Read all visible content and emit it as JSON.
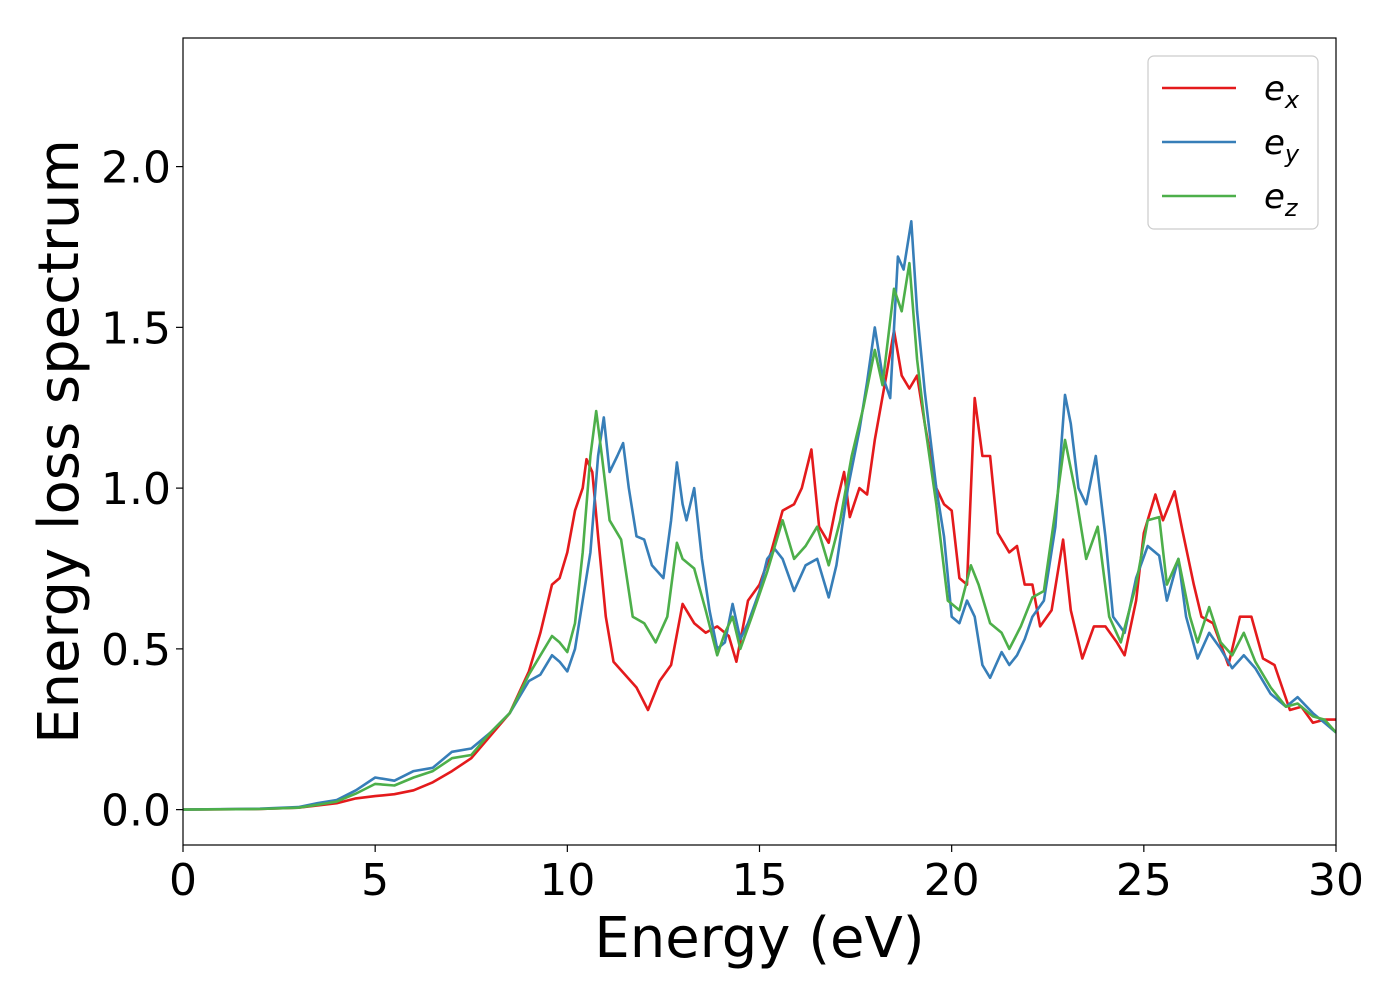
{
  "chart_data": {
    "type": "line",
    "xlabel": "Energy (eV)",
    "ylabel": "Energy loss spectrum",
    "xlim": [
      0,
      30
    ],
    "ylim": [
      -0.11,
      2.4
    ],
    "xticks": [
      0,
      5,
      10,
      15,
      20,
      25,
      30
    ],
    "xtick_labels": [
      "0",
      "5",
      "10",
      "15",
      "20",
      "25",
      "30"
    ],
    "yticks": [
      0.0,
      0.5,
      1.0,
      1.5,
      2.0
    ],
    "ytick_labels": [
      "0.0",
      "0.5",
      "1.0",
      "1.5",
      "2.0"
    ],
    "grid": false,
    "legend_position": "top-right",
    "series": [
      {
        "name": "e",
        "subscript": "x",
        "color": "#e41a1c",
        "points": [
          [
            0,
            0
          ],
          [
            2,
            0.002
          ],
          [
            3,
            0.006
          ],
          [
            4,
            0.02
          ],
          [
            4.5,
            0.035
          ],
          [
            5,
            0.042
          ],
          [
            5.5,
            0.048
          ],
          [
            6,
            0.06
          ],
          [
            6.5,
            0.085
          ],
          [
            7,
            0.12
          ],
          [
            7.5,
            0.16
          ],
          [
            8,
            0.23
          ],
          [
            8.5,
            0.3
          ],
          [
            9,
            0.43
          ],
          [
            9.3,
            0.55
          ],
          [
            9.6,
            0.7
          ],
          [
            9.8,
            0.72
          ],
          [
            10,
            0.8
          ],
          [
            10.2,
            0.93
          ],
          [
            10.4,
            1.0
          ],
          [
            10.5,
            1.09
          ],
          [
            10.65,
            1.05
          ],
          [
            10.8,
            0.85
          ],
          [
            11,
            0.6
          ],
          [
            11.2,
            0.46
          ],
          [
            11.5,
            0.42
          ],
          [
            11.8,
            0.38
          ],
          [
            12.1,
            0.31
          ],
          [
            12.4,
            0.4
          ],
          [
            12.7,
            0.45
          ],
          [
            13,
            0.64
          ],
          [
            13.3,
            0.58
          ],
          [
            13.6,
            0.55
          ],
          [
            13.9,
            0.57
          ],
          [
            14.2,
            0.54
          ],
          [
            14.4,
            0.46
          ],
          [
            14.7,
            0.65
          ],
          [
            15,
            0.7
          ],
          [
            15.3,
            0.8
          ],
          [
            15.6,
            0.93
          ],
          [
            15.9,
            0.95
          ],
          [
            16.1,
            1.0
          ],
          [
            16.35,
            1.12
          ],
          [
            16.55,
            0.88
          ],
          [
            16.8,
            0.83
          ],
          [
            17,
            0.95
          ],
          [
            17.2,
            1.05
          ],
          [
            17.35,
            0.91
          ],
          [
            17.6,
            1.0
          ],
          [
            17.8,
            0.98
          ],
          [
            18,
            1.15
          ],
          [
            18.3,
            1.35
          ],
          [
            18.5,
            1.49
          ],
          [
            18.7,
            1.35
          ],
          [
            18.9,
            1.31
          ],
          [
            19.1,
            1.35
          ],
          [
            19.3,
            1.2
          ],
          [
            19.6,
            1.0
          ],
          [
            19.8,
            0.95
          ],
          [
            20,
            0.93
          ],
          [
            20.2,
            0.72
          ],
          [
            20.4,
            0.7
          ],
          [
            20.6,
            1.28
          ],
          [
            20.8,
            1.1
          ],
          [
            21,
            1.1
          ],
          [
            21.2,
            0.86
          ],
          [
            21.5,
            0.8
          ],
          [
            21.7,
            0.82
          ],
          [
            21.9,
            0.7
          ],
          [
            22.1,
            0.7
          ],
          [
            22.3,
            0.57
          ],
          [
            22.6,
            0.62
          ],
          [
            22.9,
            0.84
          ],
          [
            23.1,
            0.62
          ],
          [
            23.4,
            0.47
          ],
          [
            23.7,
            0.57
          ],
          [
            24,
            0.57
          ],
          [
            24.3,
            0.52
          ],
          [
            24.5,
            0.48
          ],
          [
            24.8,
            0.65
          ],
          [
            25,
            0.86
          ],
          [
            25.3,
            0.98
          ],
          [
            25.5,
            0.9
          ],
          [
            25.8,
            0.99
          ],
          [
            26,
            0.87
          ],
          [
            26.3,
            0.7
          ],
          [
            26.5,
            0.6
          ],
          [
            26.8,
            0.58
          ],
          [
            27.2,
            0.45
          ],
          [
            27.5,
            0.6
          ],
          [
            27.8,
            0.6
          ],
          [
            28.1,
            0.47
          ],
          [
            28.4,
            0.45
          ],
          [
            28.8,
            0.31
          ],
          [
            29.1,
            0.32
          ],
          [
            29.4,
            0.27
          ],
          [
            29.7,
            0.28
          ],
          [
            30,
            0.28
          ]
        ]
      },
      {
        "name": "e",
        "subscript": "y",
        "color": "#377eb8",
        "points": [
          [
            0,
            0
          ],
          [
            2,
            0.003
          ],
          [
            3,
            0.008
          ],
          [
            3.5,
            0.02
          ],
          [
            4,
            0.03
          ],
          [
            4.5,
            0.06
          ],
          [
            5,
            0.1
          ],
          [
            5.5,
            0.09
          ],
          [
            6,
            0.12
          ],
          [
            6.5,
            0.13
          ],
          [
            7,
            0.18
          ],
          [
            7.5,
            0.19
          ],
          [
            8,
            0.24
          ],
          [
            8.5,
            0.3
          ],
          [
            9,
            0.4
          ],
          [
            9.3,
            0.42
          ],
          [
            9.6,
            0.48
          ],
          [
            9.8,
            0.46
          ],
          [
            10,
            0.43
          ],
          [
            10.2,
            0.5
          ],
          [
            10.4,
            0.65
          ],
          [
            10.6,
            0.8
          ],
          [
            10.8,
            1.1
          ],
          [
            10.95,
            1.22
          ],
          [
            11.1,
            1.05
          ],
          [
            11.3,
            1.1
          ],
          [
            11.45,
            1.14
          ],
          [
            11.6,
            1.0
          ],
          [
            11.8,
            0.85
          ],
          [
            12,
            0.84
          ],
          [
            12.2,
            0.76
          ],
          [
            12.5,
            0.72
          ],
          [
            12.7,
            0.9
          ],
          [
            12.85,
            1.08
          ],
          [
            13,
            0.95
          ],
          [
            13.1,
            0.9
          ],
          [
            13.3,
            1.0
          ],
          [
            13.5,
            0.78
          ],
          [
            13.7,
            0.62
          ],
          [
            13.9,
            0.5
          ],
          [
            14.1,
            0.52
          ],
          [
            14.3,
            0.64
          ],
          [
            14.5,
            0.53
          ],
          [
            14.7,
            0.58
          ],
          [
            15,
            0.68
          ],
          [
            15.2,
            0.78
          ],
          [
            15.4,
            0.81
          ],
          [
            15.6,
            0.78
          ],
          [
            15.9,
            0.68
          ],
          [
            16.2,
            0.76
          ],
          [
            16.5,
            0.78
          ],
          [
            16.8,
            0.66
          ],
          [
            17,
            0.76
          ],
          [
            17.3,
            1.0
          ],
          [
            17.6,
            1.18
          ],
          [
            17.8,
            1.33
          ],
          [
            18,
            1.5
          ],
          [
            18.2,
            1.35
          ],
          [
            18.4,
            1.28
          ],
          [
            18.6,
            1.72
          ],
          [
            18.75,
            1.68
          ],
          [
            18.95,
            1.83
          ],
          [
            19.1,
            1.55
          ],
          [
            19.3,
            1.3
          ],
          [
            19.6,
            1.0
          ],
          [
            19.8,
            0.85
          ],
          [
            20,
            0.6
          ],
          [
            20.2,
            0.58
          ],
          [
            20.4,
            0.65
          ],
          [
            20.6,
            0.6
          ],
          [
            20.8,
            0.45
          ],
          [
            21,
            0.41
          ],
          [
            21.3,
            0.49
          ],
          [
            21.5,
            0.45
          ],
          [
            21.7,
            0.48
          ],
          [
            21.9,
            0.53
          ],
          [
            22.1,
            0.6
          ],
          [
            22.4,
            0.65
          ],
          [
            22.7,
            0.88
          ],
          [
            22.95,
            1.29
          ],
          [
            23.1,
            1.2
          ],
          [
            23.3,
            1.0
          ],
          [
            23.5,
            0.95
          ],
          [
            23.75,
            1.1
          ],
          [
            24,
            0.85
          ],
          [
            24.2,
            0.6
          ],
          [
            24.5,
            0.55
          ],
          [
            24.8,
            0.72
          ],
          [
            25.1,
            0.82
          ],
          [
            25.4,
            0.79
          ],
          [
            25.6,
            0.65
          ],
          [
            25.9,
            0.78
          ],
          [
            26.1,
            0.6
          ],
          [
            26.4,
            0.47
          ],
          [
            26.7,
            0.55
          ],
          [
            27,
            0.5
          ],
          [
            27.3,
            0.44
          ],
          [
            27.6,
            0.48
          ],
          [
            27.9,
            0.44
          ],
          [
            28.3,
            0.36
          ],
          [
            28.7,
            0.32
          ],
          [
            29,
            0.35
          ],
          [
            29.4,
            0.3
          ],
          [
            29.7,
            0.27
          ],
          [
            30,
            0.24
          ]
        ]
      },
      {
        "name": "e",
        "subscript": "z",
        "color": "#4daf4a",
        "points": [
          [
            0,
            0
          ],
          [
            2,
            0.002
          ],
          [
            3,
            0.006
          ],
          [
            3.5,
            0.015
          ],
          [
            4,
            0.025
          ],
          [
            4.5,
            0.05
          ],
          [
            5,
            0.08
          ],
          [
            5.5,
            0.075
          ],
          [
            6,
            0.1
          ],
          [
            6.5,
            0.12
          ],
          [
            7,
            0.16
          ],
          [
            7.5,
            0.17
          ],
          [
            8,
            0.24
          ],
          [
            8.5,
            0.3
          ],
          [
            9,
            0.42
          ],
          [
            9.3,
            0.48
          ],
          [
            9.6,
            0.54
          ],
          [
            9.8,
            0.52
          ],
          [
            10,
            0.49
          ],
          [
            10.2,
            0.58
          ],
          [
            10.4,
            0.8
          ],
          [
            10.6,
            1.1
          ],
          [
            10.75,
            1.24
          ],
          [
            10.9,
            1.1
          ],
          [
            11.1,
            0.9
          ],
          [
            11.4,
            0.84
          ],
          [
            11.7,
            0.6
          ],
          [
            12,
            0.58
          ],
          [
            12.3,
            0.52
          ],
          [
            12.6,
            0.6
          ],
          [
            12.85,
            0.83
          ],
          [
            13,
            0.78
          ],
          [
            13.3,
            0.75
          ],
          [
            13.6,
            0.62
          ],
          [
            13.9,
            0.48
          ],
          [
            14.1,
            0.55
          ],
          [
            14.3,
            0.6
          ],
          [
            14.5,
            0.5
          ],
          [
            14.8,
            0.6
          ],
          [
            15.2,
            0.74
          ],
          [
            15.6,
            0.9
          ],
          [
            15.9,
            0.78
          ],
          [
            16.2,
            0.82
          ],
          [
            16.5,
            0.88
          ],
          [
            16.8,
            0.76
          ],
          [
            17.1,
            0.9
          ],
          [
            17.4,
            1.1
          ],
          [
            17.7,
            1.25
          ],
          [
            18,
            1.43
          ],
          [
            18.2,
            1.32
          ],
          [
            18.5,
            1.62
          ],
          [
            18.7,
            1.55
          ],
          [
            18.9,
            1.7
          ],
          [
            19.1,
            1.4
          ],
          [
            19.3,
            1.2
          ],
          [
            19.6,
            0.95
          ],
          [
            19.9,
            0.65
          ],
          [
            20.2,
            0.62
          ],
          [
            20.5,
            0.76
          ],
          [
            20.7,
            0.7
          ],
          [
            21,
            0.58
          ],
          [
            21.3,
            0.55
          ],
          [
            21.5,
            0.5
          ],
          [
            21.8,
            0.57
          ],
          [
            22.1,
            0.66
          ],
          [
            22.4,
            0.68
          ],
          [
            22.7,
            0.93
          ],
          [
            22.95,
            1.15
          ],
          [
            23.2,
            1.0
          ],
          [
            23.5,
            0.78
          ],
          [
            23.8,
            0.88
          ],
          [
            24.1,
            0.6
          ],
          [
            24.4,
            0.52
          ],
          [
            24.8,
            0.7
          ],
          [
            25.1,
            0.9
          ],
          [
            25.4,
            0.91
          ],
          [
            25.6,
            0.7
          ],
          [
            25.9,
            0.78
          ],
          [
            26.2,
            0.6
          ],
          [
            26.4,
            0.52
          ],
          [
            26.7,
            0.63
          ],
          [
            27,
            0.52
          ],
          [
            27.3,
            0.48
          ],
          [
            27.6,
            0.55
          ],
          [
            27.9,
            0.46
          ],
          [
            28.3,
            0.38
          ],
          [
            28.7,
            0.32
          ],
          [
            29,
            0.33
          ],
          [
            29.4,
            0.29
          ],
          [
            29.7,
            0.28
          ],
          [
            30,
            0.24
          ]
        ]
      }
    ]
  }
}
